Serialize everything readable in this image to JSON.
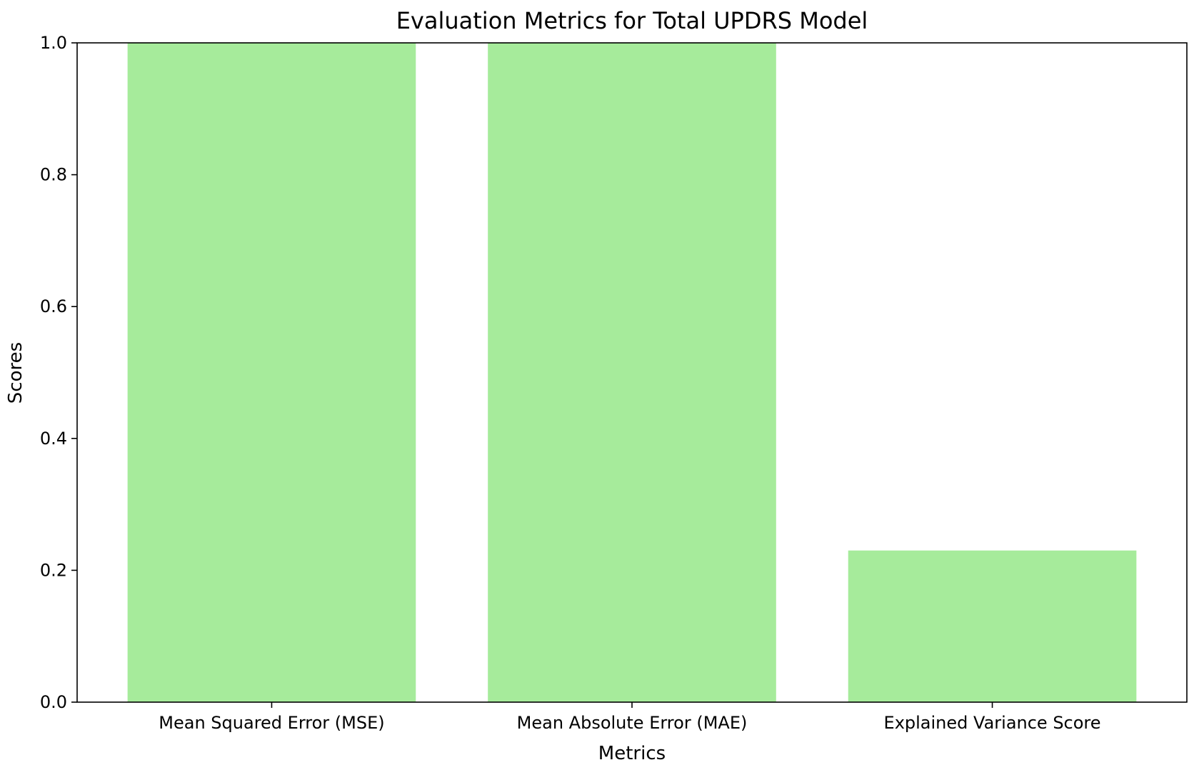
{
  "chart_data": {
    "type": "bar",
    "title": "Evaluation Metrics for Total UPDRS Model",
    "xlabel": "Metrics",
    "ylabel": "Scores",
    "categories": [
      "Mean Squared Error (MSE)",
      "Mean Absolute Error (MAE)",
      "Explained Variance Score"
    ],
    "values": [
      1.0,
      1.0,
      0.23
    ],
    "ylim": [
      0,
      1.0
    ],
    "yticks": [
      "0.0",
      "0.2",
      "0.4",
      "0.6",
      "0.8",
      "1.0"
    ],
    "bar_color": "#a6eb9b",
    "grid": false,
    "legend": "none"
  }
}
